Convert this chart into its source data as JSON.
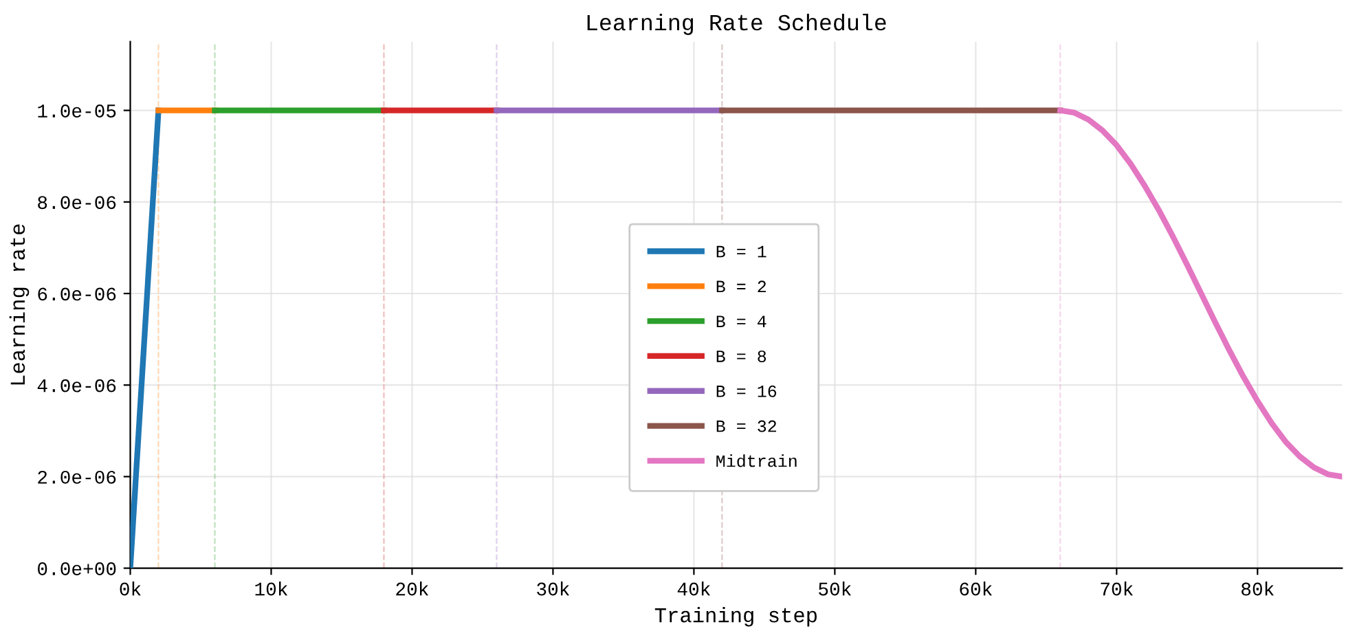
{
  "chart_data": {
    "type": "line",
    "title": "Learning Rate Schedule",
    "xlabel": "Training step",
    "ylabel": "Learning rate",
    "series": [
      {
        "name": "B = 1",
        "color": "#1f77b4",
        "x": [
          0,
          2000
        ],
        "values": [
          0,
          1e-05
        ]
      },
      {
        "name": "B = 2",
        "color": "#ff7f0e",
        "x": [
          2000,
          6000
        ],
        "values": [
          1e-05,
          1e-05
        ]
      },
      {
        "name": "B = 4",
        "color": "#2ca02c",
        "x": [
          6000,
          18000
        ],
        "values": [
          1e-05,
          1e-05
        ]
      },
      {
        "name": "B = 8",
        "color": "#d62728",
        "x": [
          18000,
          26000
        ],
        "values": [
          1e-05,
          1e-05
        ]
      },
      {
        "name": "B = 16",
        "color": "#9467bd",
        "x": [
          26000,
          42000
        ],
        "values": [
          1e-05,
          1e-05
        ]
      },
      {
        "name": "B = 32",
        "color": "#8c564b",
        "x": [
          42000,
          66000
        ],
        "values": [
          1e-05,
          1e-05
        ]
      },
      {
        "name": "Midtrain",
        "color": "#e377c2",
        "x": [
          66000,
          67000,
          68000,
          69000,
          70000,
          71000,
          72000,
          73000,
          74000,
          75000,
          76000,
          77000,
          78000,
          79000,
          80000,
          81000,
          82000,
          83000,
          84000,
          85000,
          86000
        ],
        "values": [
          1e-05,
          9.95e-06,
          9.8e-06,
          9.56e-06,
          9.24e-06,
          8.83e-06,
          8.35e-06,
          7.82e-06,
          7.24e-06,
          6.63e-06,
          6e-06,
          5.37e-06,
          4.76e-06,
          4.18e-06,
          3.65e-06,
          3.17e-06,
          2.76e-06,
          2.44e-06,
          2.2e-06,
          2.05e-06,
          2e-06
        ]
      }
    ],
    "ref_lines": [
      {
        "axis": "x",
        "value": 2000,
        "color": "#ff7f0e",
        "line_style": "dashed"
      },
      {
        "axis": "x",
        "value": 6000,
        "color": "#2ca02c",
        "line_style": "dashed"
      },
      {
        "axis": "x",
        "value": 18000,
        "color": "#d62728",
        "line_style": "dashed"
      },
      {
        "axis": "x",
        "value": 26000,
        "color": "#9467bd",
        "line_style": "dashed"
      },
      {
        "axis": "x",
        "value": 42000,
        "color": "#8c564b",
        "line_style": "dashed"
      },
      {
        "axis": "x",
        "value": 66000,
        "color": "#e377c2",
        "line_style": "dashed"
      }
    ],
    "xlim": [
      0,
      86000
    ],
    "xticks": [
      {
        "value": 0,
        "label": "0k"
      },
      {
        "value": 10000,
        "label": "10k"
      },
      {
        "value": 20000,
        "label": "20k"
      },
      {
        "value": 30000,
        "label": "30k"
      },
      {
        "value": 40000,
        "label": "40k"
      },
      {
        "value": 50000,
        "label": "50k"
      },
      {
        "value": 60000,
        "label": "60k"
      },
      {
        "value": 70000,
        "label": "70k"
      },
      {
        "value": 80000,
        "label": "80k"
      }
    ],
    "ylim": [
      0,
      1.15e-05
    ],
    "yticks": [
      {
        "value": 0,
        "label": "0.0e+00"
      },
      {
        "value": 2e-06,
        "label": "2.0e-06"
      },
      {
        "value": 4e-06,
        "label": "4.0e-06"
      },
      {
        "value": 6e-06,
        "label": "6.0e-06"
      },
      {
        "value": 8e-06,
        "label": "8.0e-06"
      },
      {
        "value": 1e-05,
        "label": "1.0e-05"
      }
    ],
    "grid": true,
    "legend": "center",
    "line_style": "solid",
    "marker": "none"
  }
}
